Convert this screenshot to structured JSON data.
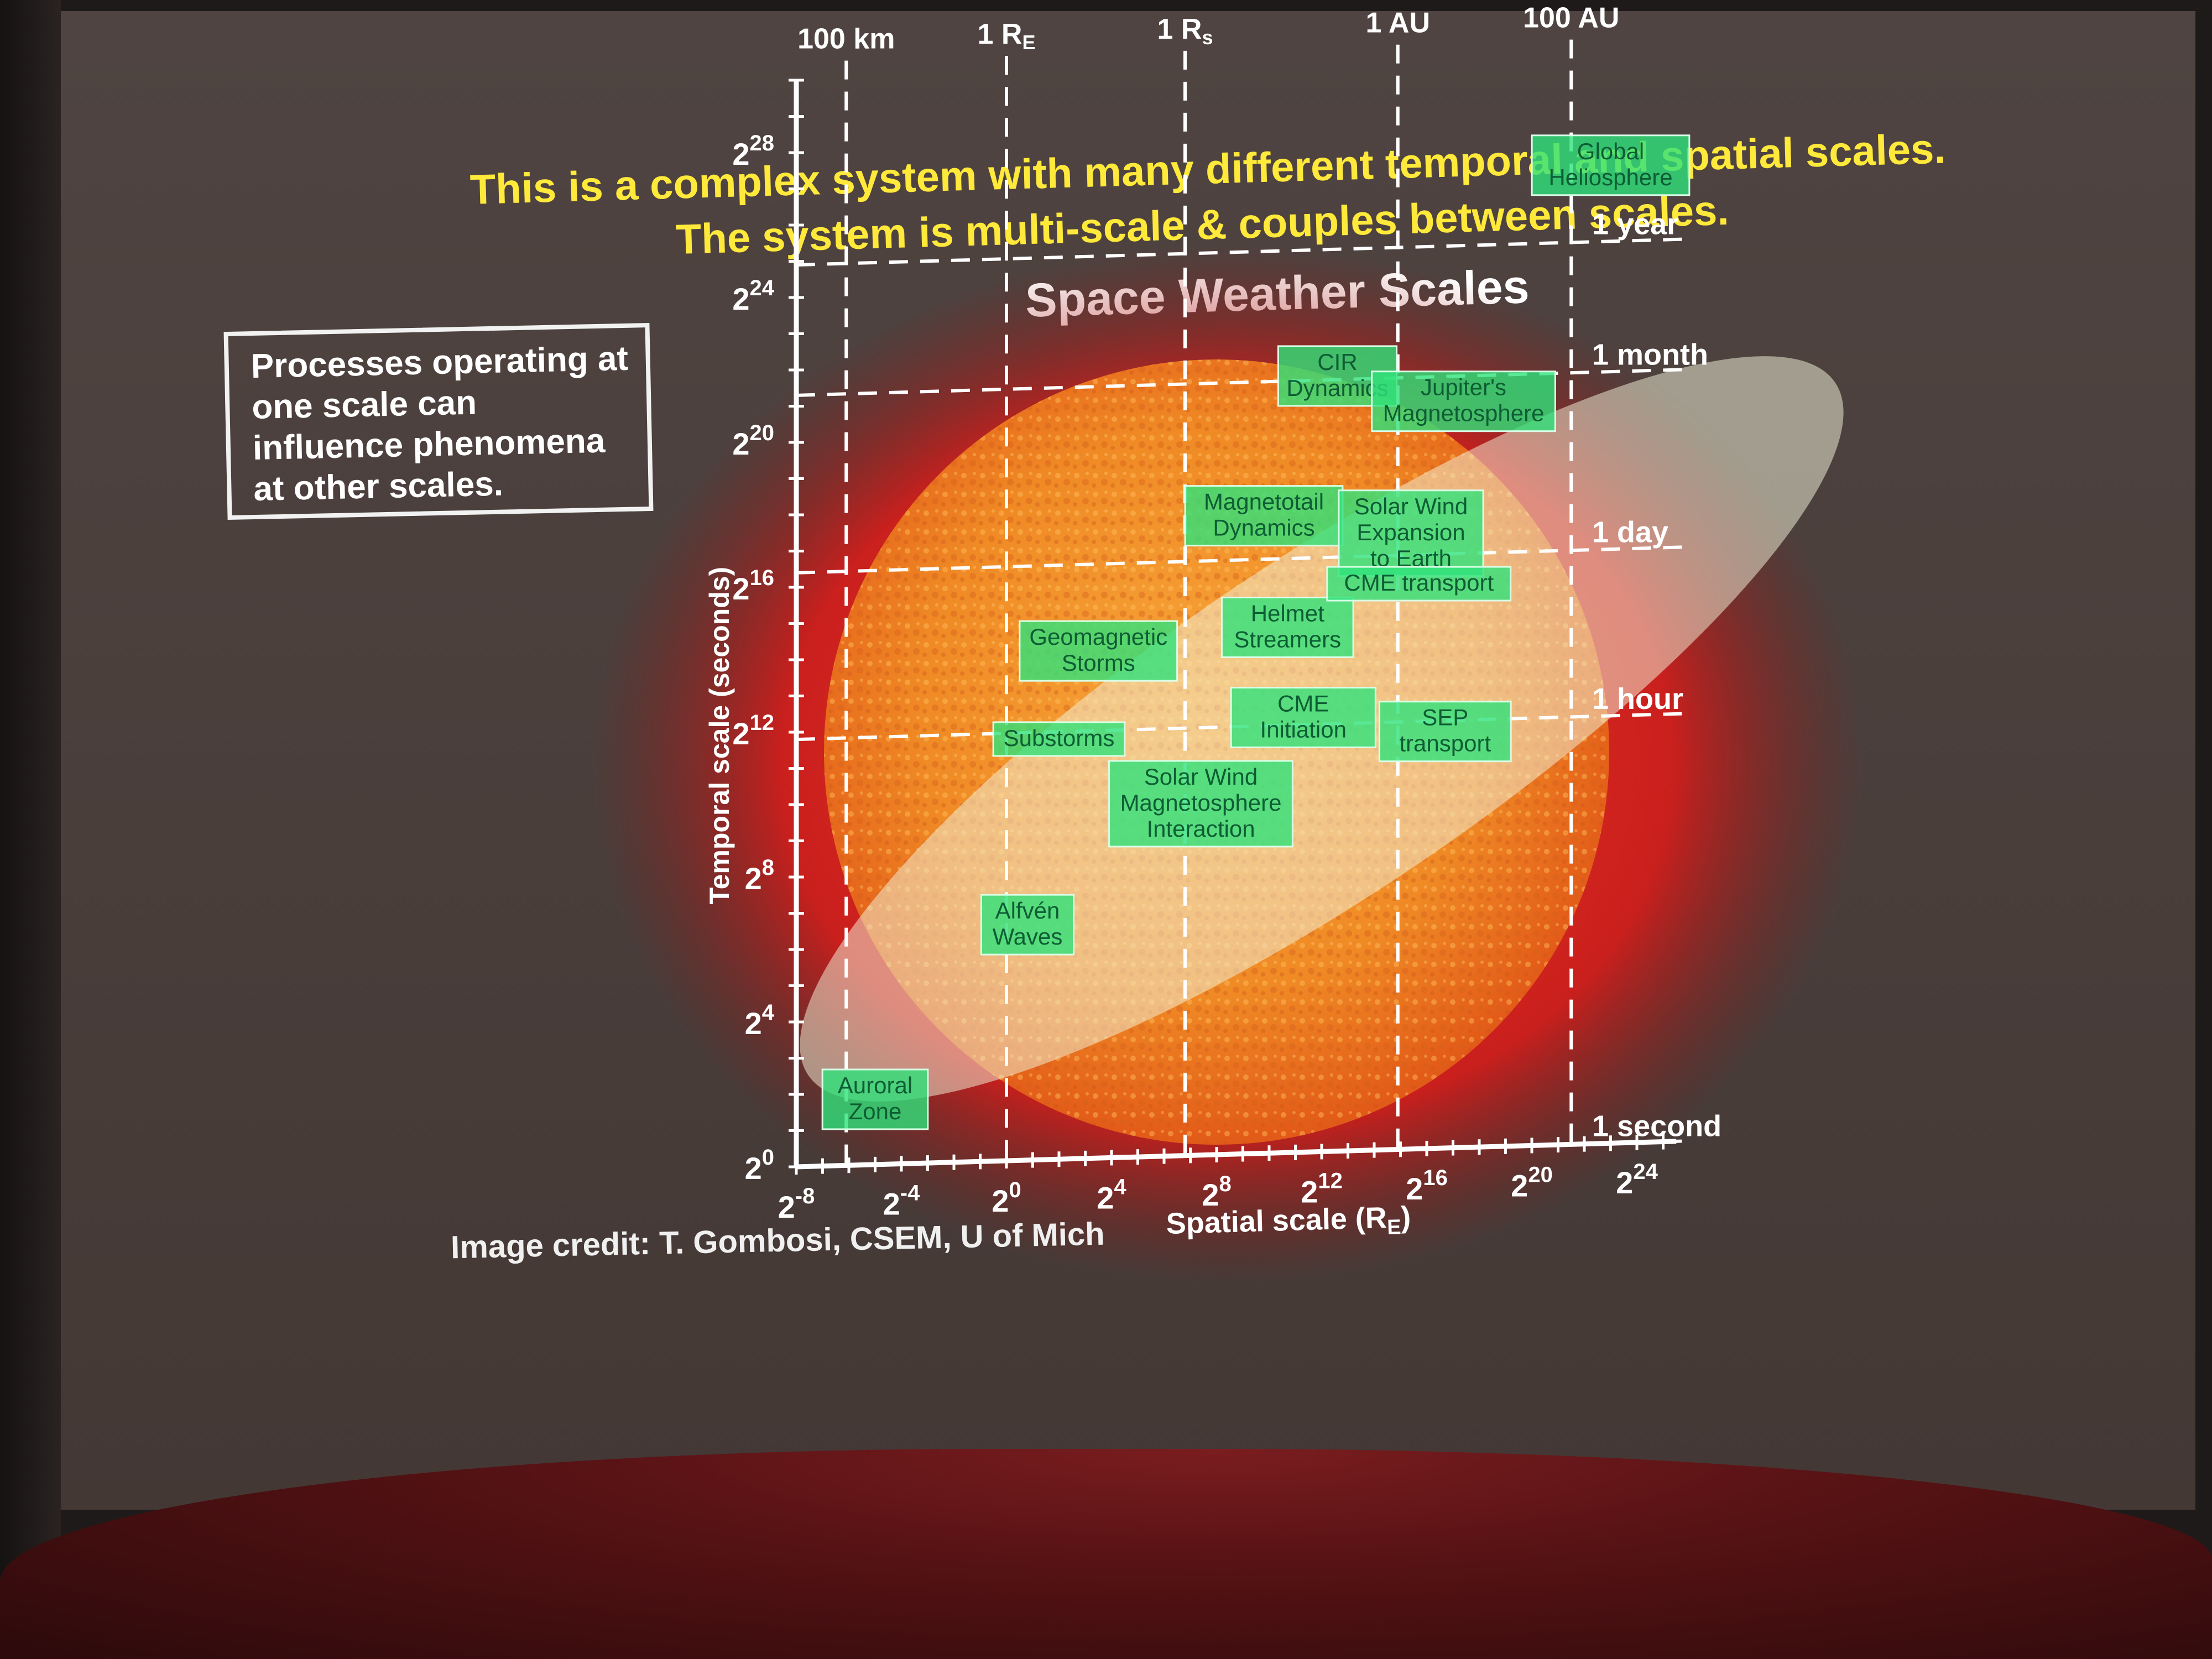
{
  "slide": {
    "headline_line1": "This is a complex system with many different temporal and spatial scales.",
    "headline_line2": "The system is multi-scale & couples between scales.",
    "callout_lines": [
      "Processes operating at",
      "one scale can",
      "influence phenomena",
      "at other scales."
    ],
    "credit": "Image credit:  T. Gombosi, CSEM, U of Mich"
  },
  "diagram": {
    "title": "Space Weather Scales",
    "x_axis_label": "Spatial scale (R",
    "x_axis_label_sub": "E",
    "x_axis_label_end": ")",
    "y_axis_label": "Temporal scale (seconds)",
    "x_ticks": [
      {
        "base": "2",
        "exp": "-8"
      },
      {
        "base": "2",
        "exp": "-4"
      },
      {
        "base": "2",
        "exp": "0"
      },
      {
        "base": "2",
        "exp": "4"
      },
      {
        "base": "2",
        "exp": "8"
      },
      {
        "base": "2",
        "exp": "12"
      },
      {
        "base": "2",
        "exp": "16"
      },
      {
        "base": "2",
        "exp": "20"
      },
      {
        "base": "2",
        "exp": "24"
      }
    ],
    "y_ticks": [
      {
        "base": "2",
        "exp": "0"
      },
      {
        "base": "2",
        "exp": "4"
      },
      {
        "base": "2",
        "exp": "8"
      },
      {
        "base": "2",
        "exp": "12"
      },
      {
        "base": "2",
        "exp": "16"
      },
      {
        "base": "2",
        "exp": "20"
      },
      {
        "base": "2",
        "exp": "24"
      },
      {
        "base": "2",
        "exp": "28"
      }
    ],
    "spatial_refs": [
      {
        "label": "100 km",
        "x": -6.1
      },
      {
        "label": "1 R",
        "sub": "E",
        "x": 0
      },
      {
        "label": "1 R",
        "sub": "s",
        "x": 6.8
      },
      {
        "label": "1 AU",
        "x": 14.9
      },
      {
        "label": "100 AU",
        "x": 21.5
      }
    ],
    "temporal_refs": [
      {
        "label": "1 second",
        "y": 0
      },
      {
        "label": "1 hour",
        "y": 11.8
      },
      {
        "label": "1 day",
        "y": 16.4
      },
      {
        "label": "1 month",
        "y": 21.3
      },
      {
        "label": "1 year",
        "y": 24.9
      }
    ],
    "phenomena": [
      {
        "label": [
          "Global",
          "Heliosphere"
        ],
        "x": 23.0,
        "y": 27.0
      },
      {
        "label": [
          "CIR",
          "Dynamics"
        ],
        "x": 12.6,
        "y": 21.4
      },
      {
        "label": [
          "Jupiter's",
          "Magnetosphere"
        ],
        "x": 17.4,
        "y": 20.6
      },
      {
        "label": [
          "Magnetotail",
          "Dynamics"
        ],
        "x": 9.8,
        "y": 17.6
      },
      {
        "label": [
          "Solar Wind",
          "Expansion",
          "to Earth"
        ],
        "x": 15.4,
        "y": 17.0
      },
      {
        "label": [
          "Helmet",
          "Streamers"
        ],
        "x": 10.7,
        "y": 14.5
      },
      {
        "label": [
          "CME transport"
        ],
        "x": 15.7,
        "y": 15.6
      },
      {
        "label": [
          "Geomagnetic",
          "Storms"
        ],
        "x": 3.5,
        "y": 14.0
      },
      {
        "label": [
          "CME",
          "Initiation"
        ],
        "x": 11.3,
        "y": 12.0
      },
      {
        "label": [
          "SEP",
          "transport"
        ],
        "x": 16.7,
        "y": 11.5
      },
      {
        "label": [
          "Substorms"
        ],
        "x": 2.0,
        "y": 11.6
      },
      {
        "label": [
          "Solar Wind",
          "Magnetosphere",
          "Interaction"
        ],
        "x": 7.4,
        "y": 9.7
      },
      {
        "label": [
          "Alfvén",
          "Waves"
        ],
        "x": 0.8,
        "y": 6.5
      },
      {
        "label": [
          "Auroral",
          "Zone"
        ],
        "x": -5.0,
        "y": 1.8
      }
    ],
    "colors": {
      "label_fill": "#2fe27a",
      "label_text": "#0d5d34",
      "axis": "#ffffff",
      "sun": "#f29a2e",
      "glow": "#e8201c"
    }
  }
}
